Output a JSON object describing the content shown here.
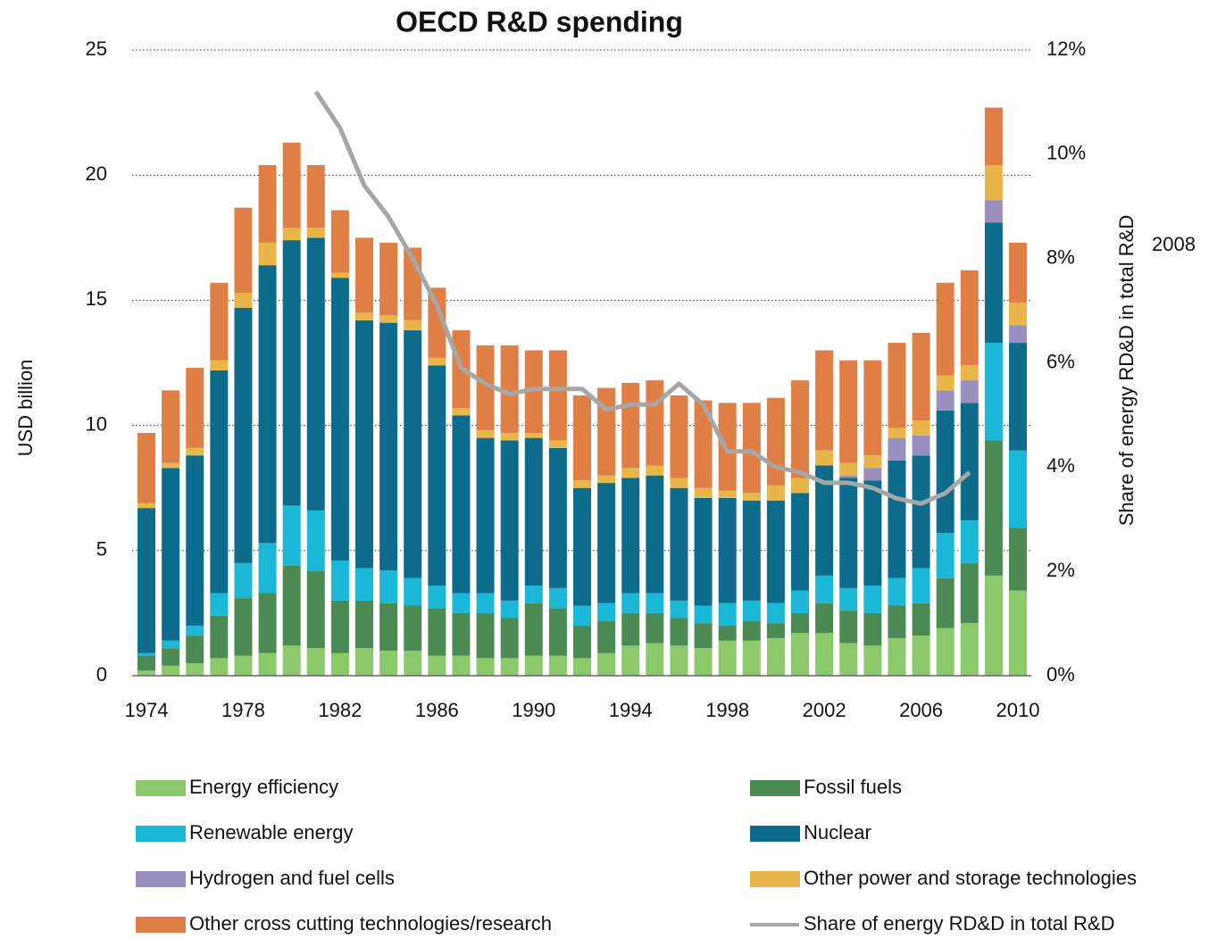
{
  "chart_data": {
    "type": "bar",
    "stacked": true,
    "title": "OECD R&D spending",
    "y_label": "USD billion",
    "y2_label": "Share of energy RD&D in total R&D",
    "annotation": "2008",
    "categories": [
      "1974",
      null,
      null,
      null,
      "1978",
      null,
      null,
      null,
      "1982",
      null,
      null,
      null,
      "1986",
      null,
      null,
      null,
      "1990",
      null,
      null,
      null,
      "1994",
      null,
      null,
      null,
      "1998",
      null,
      null,
      null,
      "2002",
      null,
      null,
      null,
      "2006",
      null,
      null,
      null,
      "2010"
    ],
    "ylim": [
      0,
      25
    ],
    "yticks": [
      0,
      5,
      10,
      15,
      20,
      25
    ],
    "y2lim": [
      0,
      12
    ],
    "y2ticks": [
      {
        "value": 0,
        "label": "0%"
      },
      {
        "value": 2,
        "label": "2%"
      },
      {
        "value": 4,
        "label": "4%"
      },
      {
        "value": 6,
        "label": "6%"
      },
      {
        "value": 8,
        "label": "8%"
      },
      {
        "value": 10,
        "label": "10%"
      },
      {
        "value": 12,
        "label": "12%"
      }
    ],
    "grid": true,
    "series": [
      {
        "name": "Energy efficiency",
        "color": "#8cc96a",
        "values": [
          0.2,
          0.4,
          0.5,
          0.7,
          0.8,
          0.9,
          1.2,
          1.1,
          0.9,
          1.1,
          1.0,
          1.0,
          0.8,
          0.8,
          0.7,
          0.7,
          0.8,
          0.8,
          0.7,
          0.9,
          1.2,
          1.3,
          1.2,
          1.1,
          1.4,
          1.4,
          1.5,
          1.7,
          1.7,
          1.3,
          1.2,
          1.5,
          1.6,
          1.9,
          2.1,
          4.0,
          3.4
        ]
      },
      {
        "name": "Fossil fuels",
        "color": "#4b8b53",
        "values": [
          0.6,
          0.7,
          1.1,
          1.7,
          2.3,
          2.4,
          3.2,
          3.1,
          2.1,
          1.9,
          1.9,
          1.8,
          1.9,
          1.7,
          1.8,
          1.6,
          2.1,
          1.9,
          1.3,
          1.3,
          1.3,
          1.2,
          1.1,
          1.0,
          0.6,
          0.8,
          0.6,
          0.8,
          1.2,
          1.3,
          1.3,
          1.3,
          1.3,
          2.0,
          2.4,
          5.4,
          2.5
        ]
      },
      {
        "name": "Renewable energy",
        "color": "#1ab8d6",
        "values": [
          0.1,
          0.3,
          0.4,
          0.9,
          1.4,
          2.0,
          2.4,
          2.4,
          1.6,
          1.3,
          1.3,
          1.1,
          0.9,
          0.8,
          0.8,
          0.7,
          0.7,
          0.8,
          0.8,
          0.7,
          0.8,
          0.8,
          0.7,
          0.7,
          0.9,
          0.8,
          0.8,
          0.9,
          1.1,
          0.9,
          1.1,
          1.1,
          1.4,
          1.8,
          1.7,
          3.9,
          3.1
        ]
      },
      {
        "name": "Nuclear",
        "color": "#0d6b8c",
        "values": [
          5.8,
          6.9,
          6.8,
          8.9,
          10.2,
          11.1,
          10.6,
          10.9,
          11.3,
          9.9,
          9.9,
          9.9,
          8.8,
          7.1,
          6.2,
          6.4,
          5.9,
          5.6,
          4.7,
          4.8,
          4.6,
          4.7,
          4.5,
          4.3,
          4.2,
          4.0,
          4.1,
          3.9,
          4.4,
          4.4,
          4.2,
          4.7,
          4.5,
          4.9,
          4.7,
          4.8,
          4.3
        ]
      },
      {
        "name": "Hydrogen and fuel cells",
        "color": "#9b8fbf",
        "values": [
          0,
          0,
          0,
          0,
          0,
          0,
          0,
          0,
          0,
          0,
          0,
          0,
          0,
          0,
          0,
          0,
          0,
          0,
          0,
          0,
          0,
          0,
          0,
          0,
          0,
          0,
          0,
          0,
          0,
          0.1,
          0.5,
          0.9,
          0.8,
          0.8,
          0.9,
          0.9,
          0.7
        ]
      },
      {
        "name": "Other power and storage technologies",
        "color": "#e9b649",
        "values": [
          0.2,
          0.2,
          0.3,
          0.4,
          0.6,
          0.9,
          0.5,
          0.4,
          0.2,
          0.3,
          0.3,
          0.4,
          0.3,
          0.3,
          0.3,
          0.3,
          0.2,
          0.3,
          0.3,
          0.3,
          0.4,
          0.4,
          0.4,
          0.4,
          0.3,
          0.3,
          0.6,
          0.6,
          0.6,
          0.5,
          0.5,
          0.4,
          0.6,
          0.6,
          0.6,
          1.4,
          0.9
        ]
      },
      {
        "name": "Other cross cutting technologies/research",
        "color": "#e07f45",
        "values": [
          2.8,
          2.9,
          3.2,
          3.1,
          3.4,
          3.1,
          3.4,
          2.5,
          2.5,
          3.0,
          2.9,
          2.9,
          2.8,
          3.1,
          3.4,
          3.5,
          3.3,
          3.6,
          3.4,
          3.5,
          3.4,
          3.4,
          3.3,
          3.5,
          3.5,
          3.6,
          3.5,
          3.9,
          4.0,
          4.1,
          3.8,
          3.4,
          3.5,
          3.7,
          3.8,
          2.3,
          2.4
        ]
      },
      {
        "name": "Share of energy RD&D in total R&D",
        "color": "#a6a6a6",
        "type": "line",
        "axis": "y2",
        "values": [
          null,
          null,
          null,
          null,
          null,
          null,
          null,
          11.2,
          10.5,
          9.4,
          8.8,
          8.0,
          7.1,
          5.9,
          5.6,
          5.4,
          5.5,
          5.5,
          5.5,
          5.1,
          5.2,
          5.2,
          5.6,
          5.2,
          4.3,
          4.3,
          4.0,
          3.9,
          3.7,
          3.7,
          3.6,
          3.4,
          3.3,
          3.5,
          3.9,
          null,
          null
        ]
      }
    ]
  }
}
